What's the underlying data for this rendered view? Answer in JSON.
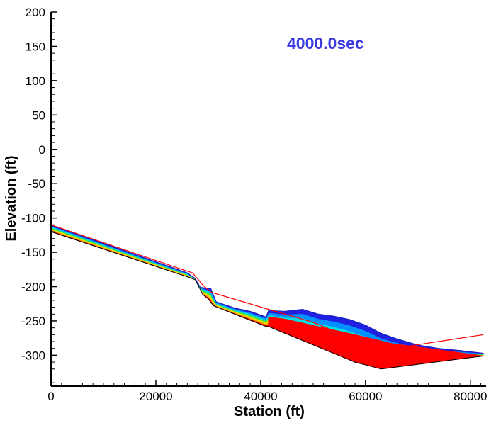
{
  "chart_data": {
    "type": "area",
    "title": "",
    "annotation": "4000.0sec",
    "xlabel": "Station (ft)",
    "ylabel": "Elevation (ft)",
    "xlim": [
      0,
      83000
    ],
    "ylim": [
      -345,
      200
    ],
    "xticks": [
      0,
      20000,
      40000,
      60000,
      80000
    ],
    "xtick_labels": [
      "0",
      "20000",
      "40000",
      "60000",
      "80000"
    ],
    "yticks": [
      200,
      150,
      100,
      50,
      0,
      -50,
      -100,
      -150,
      -200,
      -250,
      -300
    ],
    "ytick_labels": [
      "200",
      "150",
      "100",
      "50",
      "0",
      "-50",
      "-100",
      "-150",
      "-200",
      "-250",
      "-300"
    ],
    "grid": false,
    "colors": {
      "deep": "#ff0000",
      "bands": [
        "#ff0000",
        "#ffa000",
        "#e8e800",
        "#40e040",
        "#00e0e0",
        "#0090ff",
        "#2020e0"
      ],
      "ground": "#000000",
      "profile": "#ff0000",
      "annotation": "#3a3ae0"
    },
    "series": [
      {
        "kind": "ground",
        "x": [
          0,
          26500,
          27500,
          29000,
          30000,
          31000,
          41000,
          41500,
          58000,
          63000,
          82500
        ],
        "y": [
          -120,
          -187,
          -190,
          -212,
          -218,
          -228,
          -258,
          -258,
          -310,
          -320,
          -301
        ]
      },
      {
        "kind": "water-surface",
        "x": [
          0,
          26000,
          27500,
          28500,
          30500,
          31500,
          35000,
          38000,
          41000,
          41500,
          42000,
          44500,
          48000,
          51000,
          54000,
          57000,
          60000,
          63000,
          66000,
          70000,
          74000,
          78000,
          82500
        ],
        "y": [
          -110,
          -180,
          -188,
          -201,
          -203,
          -222,
          -231,
          -236,
          -244,
          -235,
          -235,
          -236,
          -233,
          -240,
          -243,
          -248,
          -256,
          -268,
          -276,
          -285,
          -290,
          -293,
          -297
        ]
      },
      {
        "kind": "profile-line",
        "x": [
          0,
          25000,
          27000,
          29000,
          30500,
          41000,
          50000,
          60000,
          67000,
          82500
        ],
        "y": [
          -110,
          -175,
          -180,
          -198,
          -208,
          -232,
          -252,
          -283,
          -288,
          -270
        ]
      },
      {
        "kind": "deep-flow",
        "x": [
          41500,
          58000,
          63000,
          82500,
          72000,
          65000,
          58000,
          52000,
          45000,
          41500
        ],
        "y": [
          -258,
          -310,
          -320,
          -301,
          -290,
          -283,
          -270,
          -260,
          -248,
          -244
        ]
      }
    ]
  }
}
